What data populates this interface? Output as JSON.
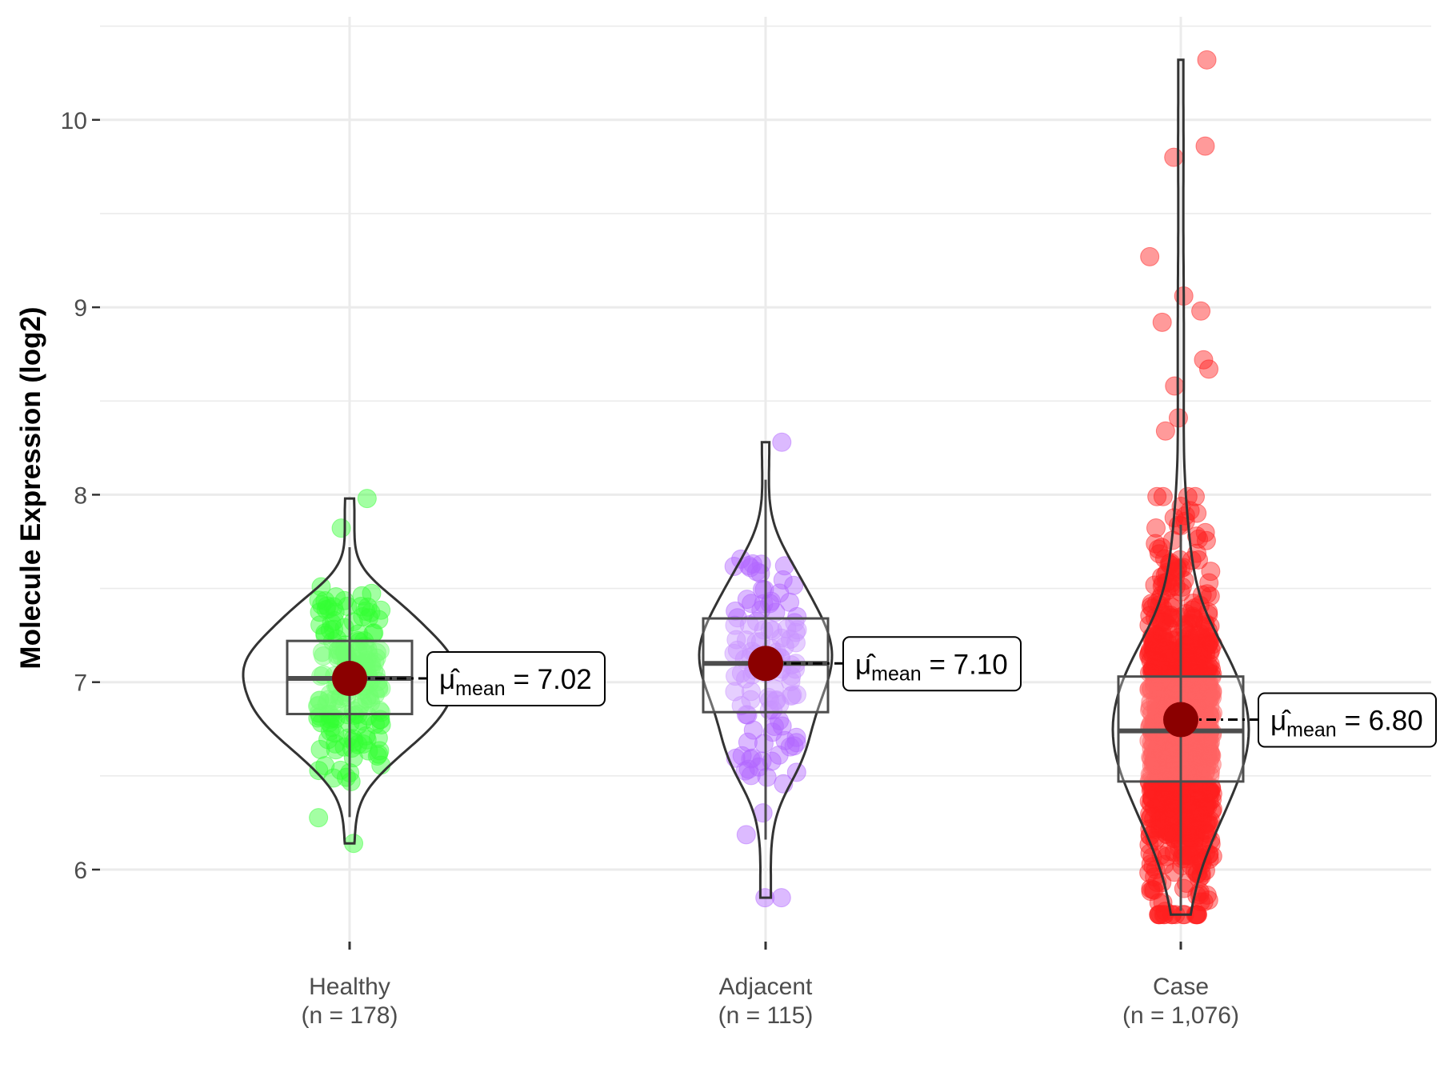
{
  "chart_data": {
    "type": "violin-box-jitter",
    "ylabel": "Molecule Expression (log2)",
    "xlabel": "",
    "ylim": [
      5.55,
      10.5
    ],
    "yticks": [
      6,
      7,
      8,
      9,
      10
    ],
    "grid": true,
    "legend": "none",
    "mean_label_prefix": "μ̂",
    "mean_label_sub": "mean",
    "mean_color": "#8B0000",
    "groups": [
      {
        "name": "Healthy",
        "n_label": "(n = 178)",
        "n": 178,
        "color": "#33FF33",
        "mean": 7.02,
        "mean_text": "7.02",
        "median": 7.02,
        "q1": 6.83,
        "q3": 7.22,
        "whisker_low": 6.28,
        "whisker_high": 7.72,
        "min": 6.14,
        "max": 7.98
      },
      {
        "name": "Adjacent",
        "n_label": "(n = 115)",
        "n": 115,
        "color": "#B266FF",
        "mean": 7.1,
        "mean_text": "7.10",
        "median": 7.1,
        "q1": 6.84,
        "q3": 7.34,
        "whisker_low": 6.16,
        "whisker_high": 8.08,
        "min": 5.85,
        "max": 8.28
      },
      {
        "name": "Case",
        "n_label": "(n = 1,076)",
        "n": 1076,
        "color": "#FF2020",
        "mean": 6.8,
        "mean_text": "6.80",
        "median": 6.74,
        "q1": 6.47,
        "q3": 7.03,
        "whisker_low": 5.78,
        "whisker_high": 7.84,
        "min": 5.76,
        "max": 10.32
      }
    ]
  }
}
